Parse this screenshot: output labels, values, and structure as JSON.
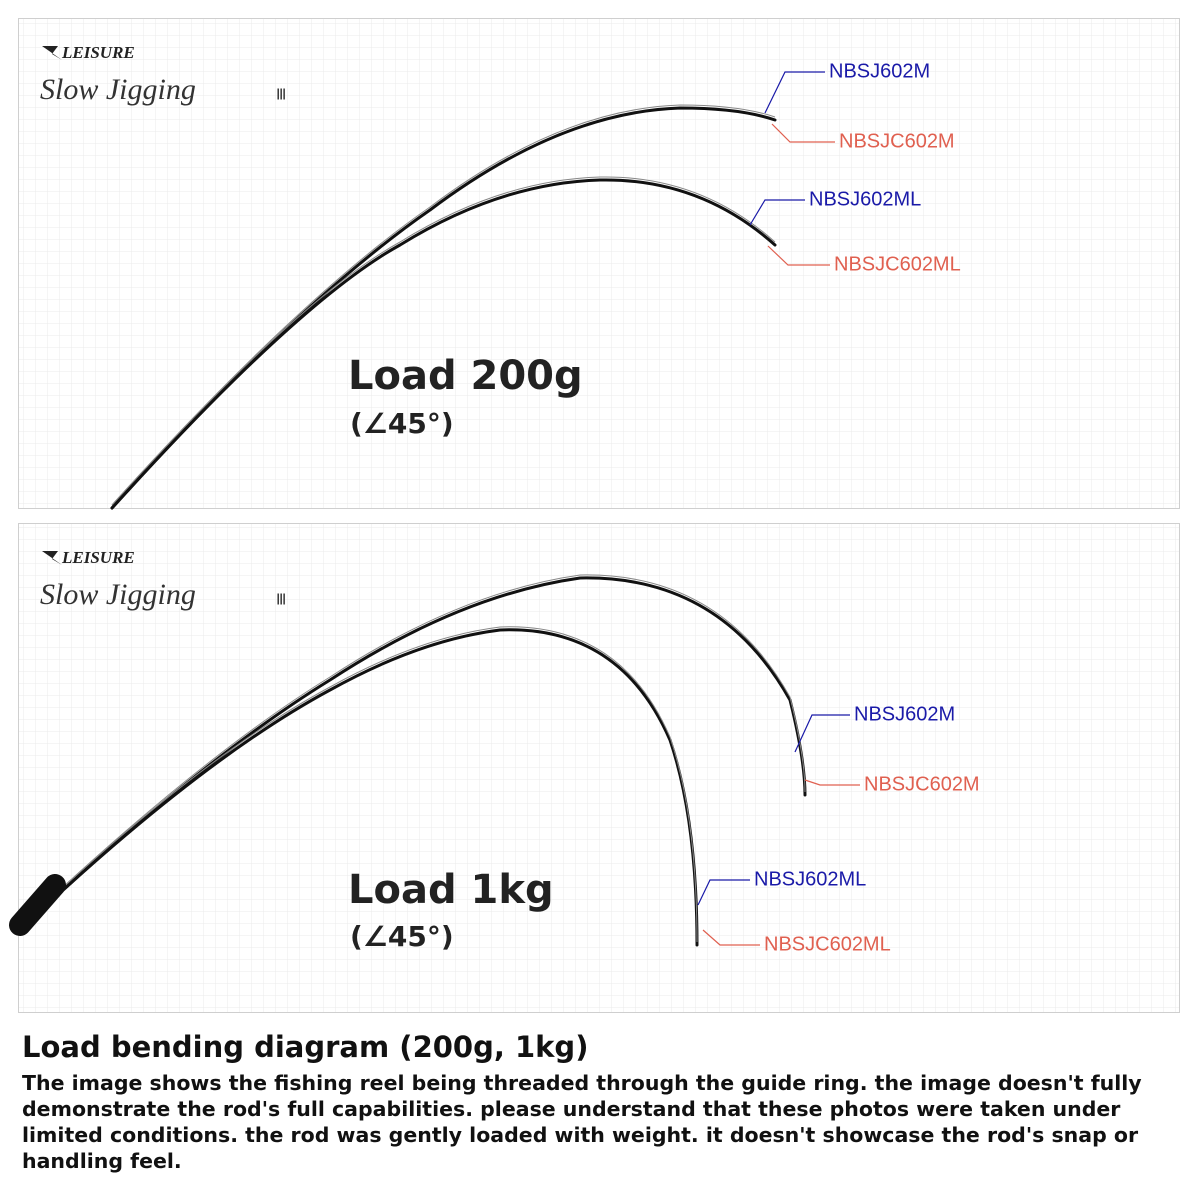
{
  "panels": [
    {
      "brand": "LEISURE",
      "series": "Slow Jigging",
      "series_mark": "Ⅲ",
      "load": "Load 200g",
      "angle": "(∠45°)",
      "labels": [
        "NBSJ602M",
        "NBSJC602M",
        "NBSJ602ML",
        "NBSJC602ML"
      ]
    },
    {
      "brand": "LEISURE",
      "series": "Slow Jigging",
      "series_mark": "Ⅲ",
      "load": "Load 1kg",
      "angle": "(∠45°)",
      "labels": [
        "NBSJ602M",
        "NBSJC602M",
        "NBSJ602ML",
        "NBSJC602ML"
      ]
    }
  ],
  "caption": {
    "title": "Load bending diagram (200g, 1kg)",
    "text": "The image shows the fishing reel being threaded through the guide ring. the image doesn't fully demonstrate the rod's full capabilities. please understand that these photos were taken under limited conditions. the rod was gently loaded with weight. it doesn't showcase the rod's snap or handling feel."
  }
}
